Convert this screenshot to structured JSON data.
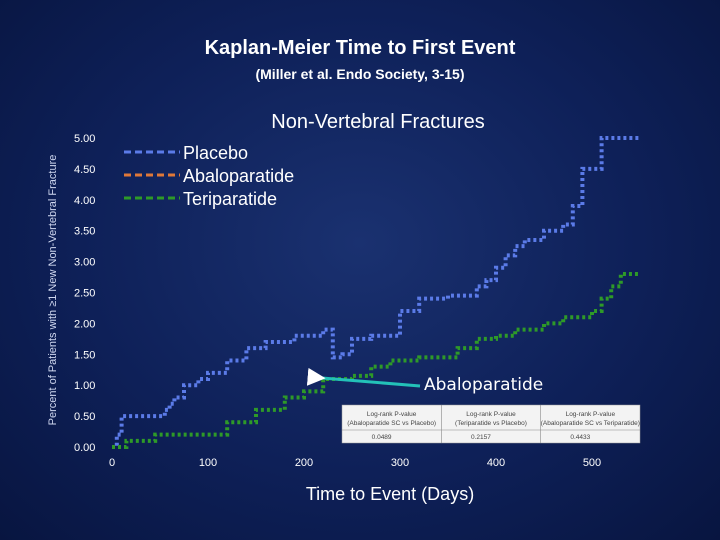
{
  "slide": {
    "title": "Kaplan-Meier Time to First Event",
    "subtitle": "(Miller et al. Endo Society, 3-15)"
  },
  "chart_data": {
    "type": "line",
    "title": "Non-Vertebral Fractures",
    "xlabel": "Time to Event (Days)",
    "ylabel": "Percent of Patients with ≥1 New Non-Vertebral Fracture",
    "xlim": [
      0,
      550
    ],
    "ylim": [
      0,
      5
    ],
    "x_ticks": [
      "0",
      "100",
      "200",
      "300",
      "400",
      "500"
    ],
    "y_ticks": [
      "0.00",
      "0.50",
      "1.00",
      "1.50",
      "2.00",
      "2.50",
      "3.00",
      "3.50",
      "4.00",
      "4.50",
      "5.00"
    ],
    "grid": false,
    "legend_position": "top-left",
    "series": [
      {
        "name": "Placebo",
        "color": "#5b7be8",
        "style": "dashed",
        "points": [
          [
            0,
            0
          ],
          [
            5,
            0.2
          ],
          [
            10,
            0.5
          ],
          [
            50,
            0.5
          ],
          [
            55,
            0.6
          ],
          [
            60,
            0.7
          ],
          [
            65,
            0.8
          ],
          [
            75,
            1.0
          ],
          [
            90,
            1.1
          ],
          [
            100,
            1.2
          ],
          [
            120,
            1.4
          ],
          [
            140,
            1.6
          ],
          [
            160,
            1.7
          ],
          [
            190,
            1.8
          ],
          [
            220,
            1.9
          ],
          [
            230,
            1.45
          ],
          [
            240,
            1.5
          ],
          [
            250,
            1.75
          ],
          [
            270,
            1.8
          ],
          [
            300,
            2.2
          ],
          [
            320,
            2.4
          ],
          [
            350,
            2.45
          ],
          [
            380,
            2.6
          ],
          [
            390,
            2.7
          ],
          [
            400,
            2.9
          ],
          [
            410,
            3.1
          ],
          [
            420,
            3.25
          ],
          [
            430,
            3.35
          ],
          [
            450,
            3.5
          ],
          [
            470,
            3.6
          ],
          [
            480,
            3.9
          ],
          [
            490,
            4.5
          ],
          [
            510,
            5.0
          ],
          [
            550,
            5.0
          ]
        ]
      },
      {
        "name": "Abaloparatide",
        "color": "#e07838",
        "style": "dashed",
        "points": [],
        "annotation": "Abaloparatide"
      },
      {
        "name": "Teriparatide",
        "color": "#2e9a28",
        "style": "dashed",
        "points": [
          [
            0,
            0
          ],
          [
            10,
            0
          ],
          [
            15,
            0.1
          ],
          [
            40,
            0.1
          ],
          [
            45,
            0.2
          ],
          [
            100,
            0.2
          ],
          [
            120,
            0.4
          ],
          [
            150,
            0.6
          ],
          [
            180,
            0.8
          ],
          [
            200,
            0.9
          ],
          [
            220,
            1.1
          ],
          [
            250,
            1.15
          ],
          [
            270,
            1.3
          ],
          [
            290,
            1.4
          ],
          [
            320,
            1.45
          ],
          [
            360,
            1.6
          ],
          [
            380,
            1.75
          ],
          [
            400,
            1.8
          ],
          [
            420,
            1.9
          ],
          [
            450,
            2.0
          ],
          [
            470,
            2.1
          ],
          [
            500,
            2.2
          ],
          [
            510,
            2.4
          ],
          [
            520,
            2.6
          ],
          [
            530,
            2.8
          ],
          [
            550,
            2.8
          ]
        ]
      }
    ],
    "table": {
      "headers": [
        [
          "Log-rank P-value",
          "(Abaloparatide SC vs Placebo)"
        ],
        [
          "Log-rank P-value",
          "(Teriparatide vs Placebo)"
        ],
        [
          "Log-rank P-value",
          "(Abaloparatide SC vs Teriparatide)"
        ]
      ],
      "values": [
        "0.0489",
        "0.2157",
        "0.4433"
      ]
    }
  }
}
